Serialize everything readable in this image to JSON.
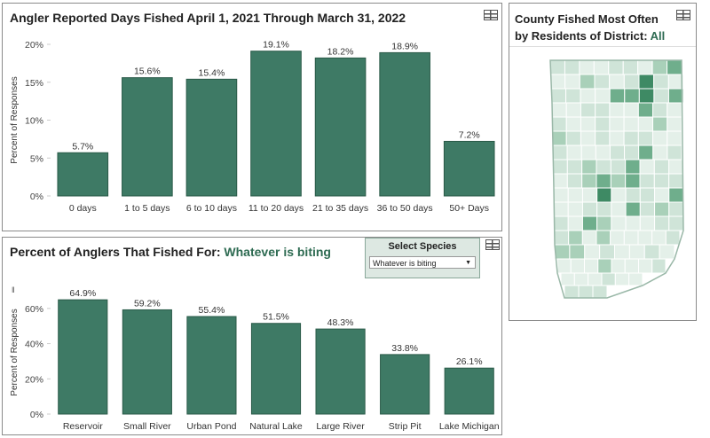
{
  "panels": {
    "days": {
      "title": "Angler Reported Days Fished April 1, 2021 Through March 31, 2022"
    },
    "species": {
      "title_prefix": "Percent of Anglers That Fished For: ",
      "title_highlight": "Whatever is biting",
      "filter_label": "Select Species",
      "filter_value": "Whatever is biting",
      "dropdown_caret": "▼",
      "truncated_icon": "‖"
    },
    "map": {
      "title": "County Fished Most Often by Residents of District: ",
      "title_highlight": "All"
    }
  },
  "chart_data": [
    {
      "type": "bar",
      "title": "Angler Reported Days Fished April 1, 2021 Through March 31, 2022",
      "xlabel": "",
      "ylabel": "Percent of Responses",
      "categories": [
        "0 days",
        "1 to 5 days",
        "6 to 10 days",
        "11 to 20 days",
        "21 to 35 days",
        "36 to 50 days",
        "50+ Days"
      ],
      "values": [
        5.7,
        15.6,
        15.4,
        19.1,
        18.2,
        18.9,
        7.2
      ],
      "data_labels": [
        "5.7%",
        "15.6%",
        "15.4%",
        "19.1%",
        "18.2%",
        "18.9%",
        "7.2%"
      ],
      "ylim": [
        0,
        20
      ],
      "yticks": [
        0,
        5,
        10,
        15,
        20
      ],
      "ytick_labels": [
        "0%",
        "5%",
        "10%",
        "15%",
        "20%"
      ],
      "bar_color": "#3e7a65",
      "grid": false
    },
    {
      "type": "bar",
      "title": "Percent of Anglers That Fished For: Whatever is biting",
      "xlabel": "",
      "ylabel": "Percent of Responses",
      "categories": [
        "Reservoir",
        "Small River",
        "Urban Pond",
        "Natural Lake",
        "Large River",
        "Strip Pit",
        "Lake Michigan"
      ],
      "values": [
        64.9,
        59.2,
        55.4,
        51.5,
        48.3,
        33.8,
        26.1
      ],
      "data_labels": [
        "64.9%",
        "59.2%",
        "55.4%",
        "51.5%",
        "48.3%",
        "33.8%",
        "26.1%"
      ],
      "ylim": [
        0,
        70
      ],
      "yticks": [
        0,
        20,
        40,
        60
      ],
      "ytick_labels": [
        "0%",
        "20%",
        "40%",
        "60%"
      ],
      "bar_color": "#3e7a65",
      "grid": false
    }
  ],
  "map_palette": {
    "outline": "#9ab8a8",
    "stroke": "#ffffff",
    "light": "#e4f0e9",
    "pale": "#cfe4d8",
    "medium": "#a9d0b9",
    "strong": "#6fae8c",
    "dark": "#3e8a64"
  }
}
